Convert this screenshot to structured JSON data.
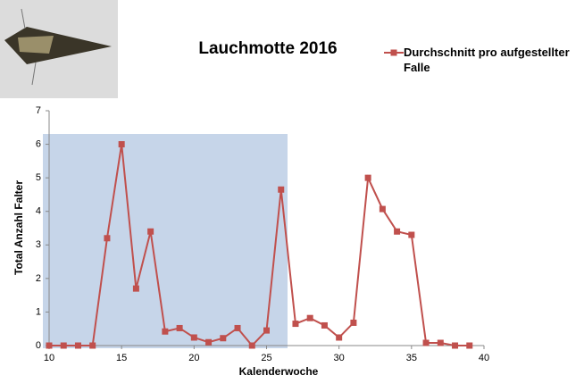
{
  "chart_data": {
    "type": "line",
    "title": "Lauchmotte 2016",
    "x_label": "Kalenderwoche",
    "y_label": "Total Anzahl Falter",
    "x": [
      10,
      11,
      12,
      13,
      14,
      15,
      16,
      17,
      18,
      19,
      20,
      21,
      22,
      23,
      24,
      25,
      26,
      27,
      28,
      29,
      30,
      31,
      32,
      33,
      34,
      35,
      36,
      37,
      38,
      39
    ],
    "series": [
      {
        "name": "Durchschnitt pro aufgestellter Falle",
        "color": "#c0504d",
        "values": [
          0,
          0,
          0,
          0,
          3.2,
          6.0,
          1.7,
          3.4,
          0.42,
          0.52,
          0.24,
          0.1,
          0.22,
          0.52,
          0,
          0.45,
          4.65,
          0.65,
          0.82,
          0.6,
          0.24,
          0.68,
          5.0,
          4.07,
          3.4,
          3.3,
          0.08,
          0.08,
          0,
          0
        ]
      }
    ],
    "xlim": [
      10,
      40
    ],
    "xticks": [
      10,
      15,
      20,
      25,
      30,
      35,
      40
    ],
    "ylim": [
      0,
      7
    ],
    "yticks": [
      0,
      1,
      2,
      3,
      4,
      5,
      6,
      7
    ],
    "legend": "top-right"
  }
}
